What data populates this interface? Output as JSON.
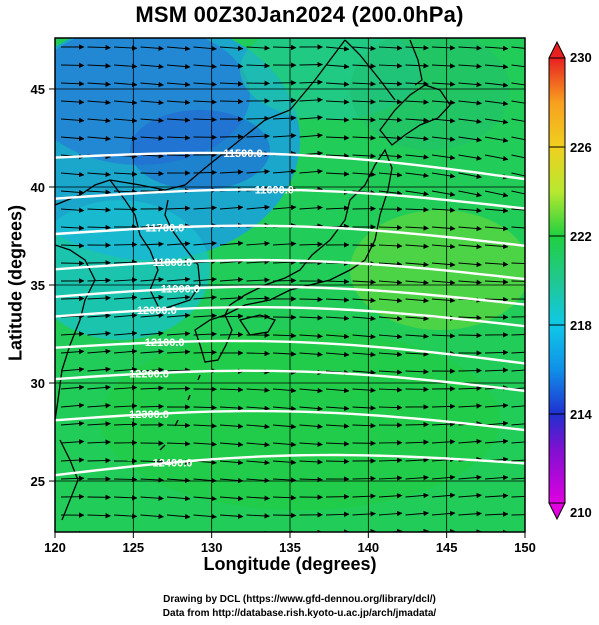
{
  "title": "MSM 00Z30Jan2024 (200.0hPa)",
  "chart_data": {
    "type": "map-contour-vector",
    "xlabel": "Longitude (degrees)",
    "ylabel": "Latitude  (degrees)",
    "xlim": [
      120,
      150
    ],
    "ylim": [
      22.4,
      47.6
    ],
    "x_ticks": [
      120,
      125,
      130,
      135,
      140,
      145,
      150
    ],
    "y_ticks": [
      25,
      30,
      35,
      40,
      45
    ],
    "colorbar": {
      "min": 210,
      "max": 230,
      "tick_labels": [
        210,
        214,
        218,
        222,
        226,
        230
      ],
      "colors": [
        "#e000e0",
        "#2030d0",
        "#10c8e8",
        "#20d060",
        "#b8e830",
        "#f8a020",
        "#e82020"
      ]
    },
    "height_contours": [
      {
        "label": "11500.0",
        "lat_west": 41.5,
        "lat_east": 40.4
      },
      {
        "label": "11600.0",
        "lat_west": 39.4,
        "lat_east": 38.9
      },
      {
        "label": "11700.0",
        "lat_west": 37.6,
        "lat_east": 37.0
      },
      {
        "label": "11800.0",
        "lat_west": 35.8,
        "lat_east": 35.3
      },
      {
        "label": "11900.0",
        "lat_west": 34.4,
        "lat_east": 34.0
      },
      {
        "label": "12000.0",
        "lat_west": 33.4,
        "lat_east": 32.9
      },
      {
        "label": "12100.0",
        "lat_west": 31.8,
        "lat_east": 31.0
      },
      {
        "label": "12200.0",
        "lat_west": 30.2,
        "lat_east": 29.6
      },
      {
        "label": "12300.0",
        "lat_west": 28.1,
        "lat_east": 27.6
      },
      {
        "label": "12400.0",
        "lat_west": 25.3,
        "lat_east": 25.9
      }
    ],
    "wind_vectors": "westerly, strong flow throughout the domain",
    "grid": true
  },
  "credits": {
    "line1": "Drawing by DCL (https://www.gfd-dennou.org/library/dcl/)",
    "line2": "Data from http://database.rish.kyoto-u.ac.jp/arch/jmadata/"
  }
}
